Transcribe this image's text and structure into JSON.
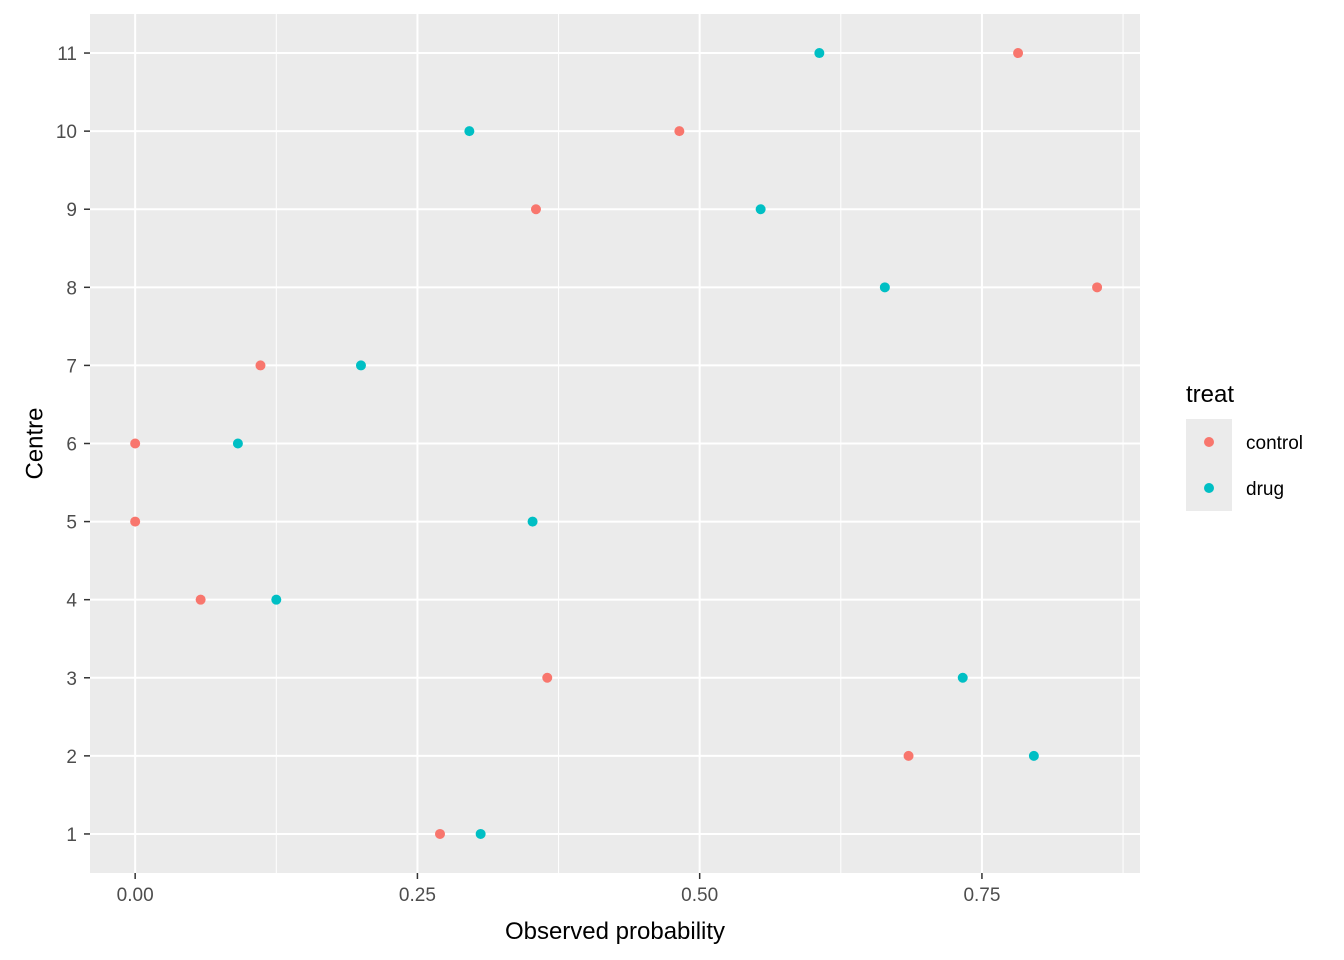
{
  "chart_data": {
    "type": "scatter",
    "xlabel": "Observed probability",
    "ylabel": "Centre",
    "xlim": [
      -0.04,
      0.89
    ],
    "ylim": [
      0.5,
      11.5
    ],
    "x_ticks": [
      0,
      0.25,
      0.5,
      0.75
    ],
    "x_tick_labels": [
      "0.00",
      "0.25",
      "0.50",
      "0.75"
    ],
    "y_ticks": [
      1,
      2,
      3,
      4,
      5,
      6,
      7,
      8,
      9,
      10,
      11
    ],
    "y_tick_labels": [
      "1",
      "2",
      "3",
      "4",
      "5",
      "6",
      "7",
      "8",
      "9",
      "10",
      "11"
    ],
    "grid": true,
    "background": "#EBEBEB",
    "legend": {
      "title": "treat",
      "position": "right"
    },
    "series": [
      {
        "name": "control",
        "color": "#F8766D",
        "points": [
          {
            "x": 0.27,
            "y": 1
          },
          {
            "x": 0.685,
            "y": 2
          },
          {
            "x": 0.365,
            "y": 3
          },
          {
            "x": 0.058,
            "y": 4
          },
          {
            "x": 0.0,
            "y": 5
          },
          {
            "x": 0.0,
            "y": 6
          },
          {
            "x": 0.111,
            "y": 7
          },
          {
            "x": 0.852,
            "y": 8
          },
          {
            "x": 0.355,
            "y": 9
          },
          {
            "x": 0.482,
            "y": 10
          },
          {
            "x": 0.782,
            "y": 11
          }
        ]
      },
      {
        "name": "drug",
        "color": "#00BFC4",
        "points": [
          {
            "x": 0.306,
            "y": 1
          },
          {
            "x": 0.796,
            "y": 2
          },
          {
            "x": 0.733,
            "y": 3
          },
          {
            "x": 0.125,
            "y": 4
          },
          {
            "x": 0.352,
            "y": 5
          },
          {
            "x": 0.091,
            "y": 6
          },
          {
            "x": 0.2,
            "y": 7
          },
          {
            "x": 0.664,
            "y": 8
          },
          {
            "x": 0.554,
            "y": 9
          },
          {
            "x": 0.296,
            "y": 10
          },
          {
            "x": 0.606,
            "y": 11
          }
        ]
      }
    ]
  }
}
